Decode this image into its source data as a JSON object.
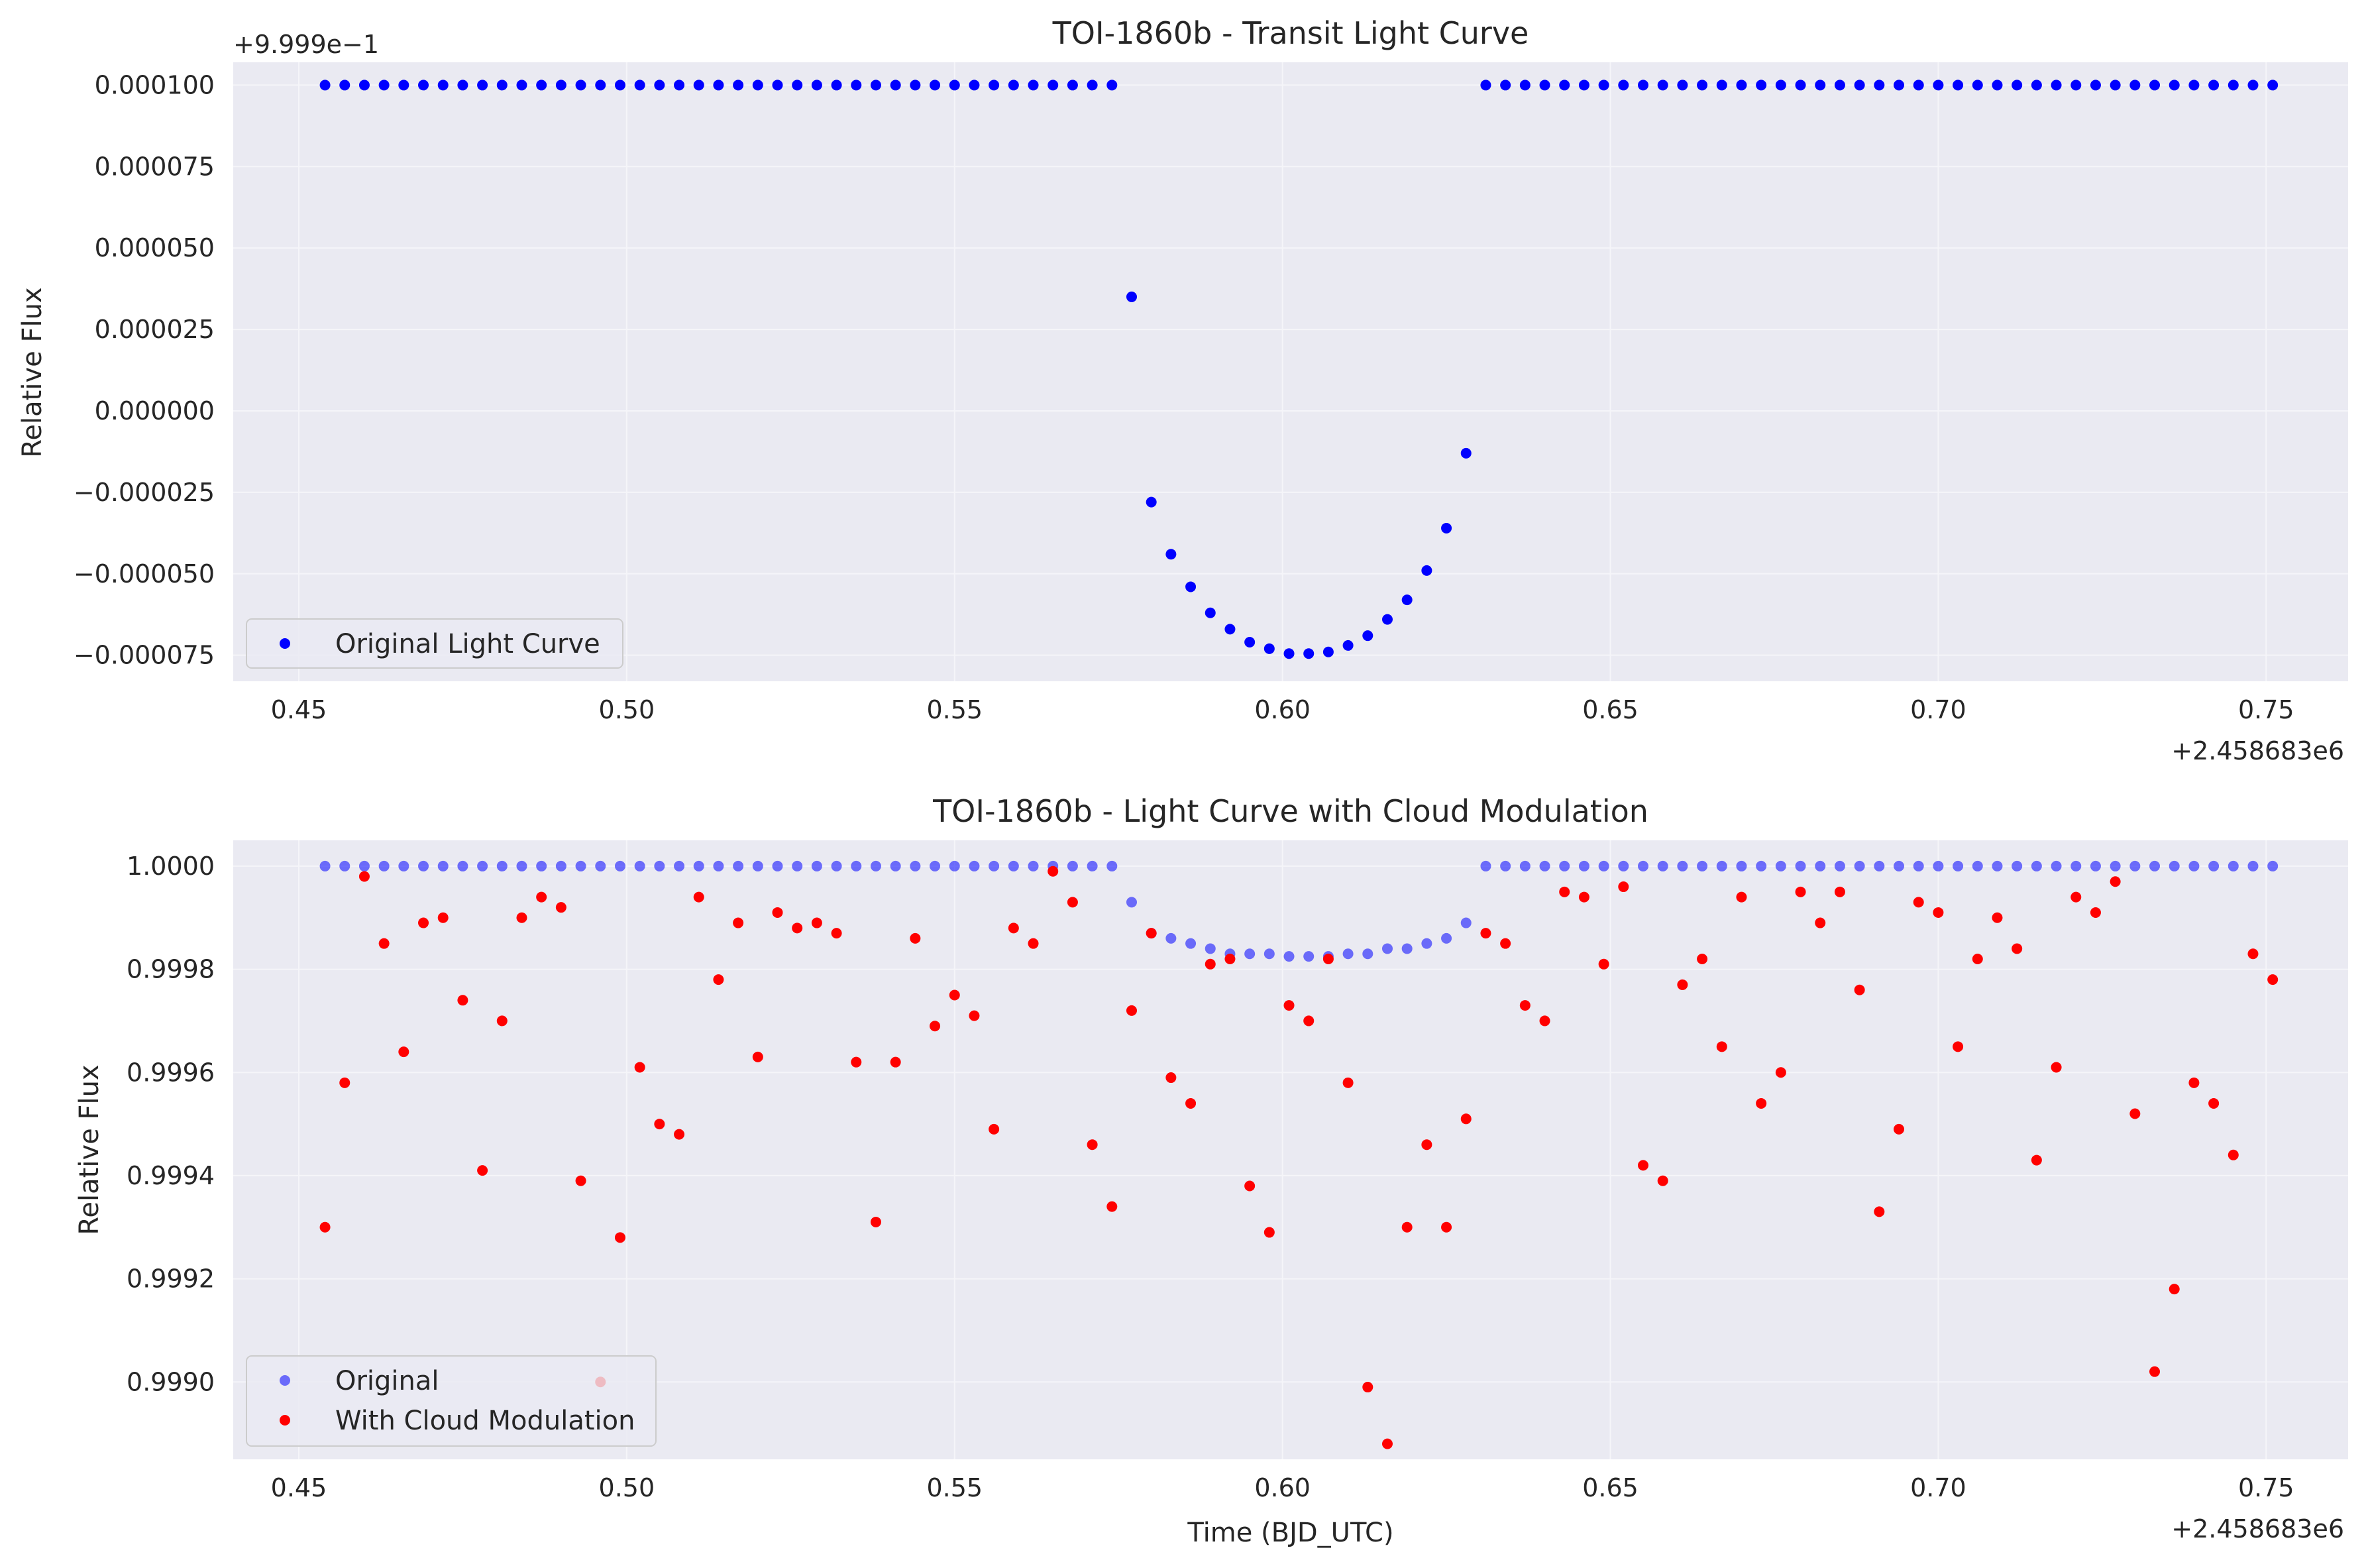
{
  "colors": {
    "axes_bg": "#eaeaf2",
    "grid": "#f5f5f9",
    "legend_frame": "#cccccc",
    "original": "#0000ff",
    "cloud": "#ff0000"
  },
  "chart_data": [
    {
      "type": "scatter",
      "title": "TOI-1860b - Transit Light Curve",
      "xlabel": "",
      "ylabel": "Relative Flux",
      "xlim": [
        0.44,
        0.7625
      ],
      "ylim": [
        -8.3e-05,
        0.000107
      ],
      "x_offset_label": "+2.458683e6",
      "y_offset_label": "+9.999e−1",
      "xticks": [
        0.45,
        0.5,
        0.55,
        0.6,
        0.65,
        0.7,
        0.75
      ],
      "xtick_labels": [
        "0.45",
        "0.50",
        "0.55",
        "0.60",
        "0.65",
        "0.70",
        "0.75"
      ],
      "yticks": [
        -7.5e-05,
        -5e-05,
        -2.5e-05,
        0,
        2.5e-05,
        5e-05,
        7.5e-05,
        0.0001
      ],
      "ytick_labels": [
        "−0.000075",
        "−0.000050",
        "−0.000025",
        "0.000000",
        "0.000025",
        "0.000050",
        "0.000075",
        "0.000100"
      ],
      "grid": true,
      "legend_position": "lower-left",
      "series": [
        {
          "name": "Original Light Curve",
          "color": "#0000ff",
          "opacity": 1,
          "x": [
            0.454,
            0.457,
            0.46,
            0.463,
            0.466,
            0.469,
            0.472,
            0.475,
            0.478,
            0.481,
            0.484,
            0.487,
            0.49,
            0.493,
            0.496,
            0.499,
            0.502,
            0.505,
            0.508,
            0.511,
            0.514,
            0.517,
            0.52,
            0.523,
            0.526,
            0.529,
            0.532,
            0.535,
            0.538,
            0.541,
            0.544,
            0.547,
            0.55,
            0.553,
            0.556,
            0.559,
            0.562,
            0.565,
            0.568,
            0.571,
            0.574,
            0.577,
            0.58,
            0.583,
            0.586,
            0.589,
            0.592,
            0.595,
            0.598,
            0.601,
            0.604,
            0.607,
            0.61,
            0.613,
            0.616,
            0.619,
            0.622,
            0.625,
            0.628,
            0.631,
            0.634,
            0.637,
            0.64,
            0.643,
            0.646,
            0.649,
            0.652,
            0.655,
            0.658,
            0.661,
            0.664,
            0.667,
            0.67,
            0.673,
            0.676,
            0.679,
            0.682,
            0.685,
            0.688,
            0.691,
            0.694,
            0.697,
            0.7,
            0.703,
            0.706,
            0.709,
            0.712,
            0.715,
            0.718,
            0.721,
            0.724,
            0.727,
            0.73,
            0.733,
            0.736,
            0.739,
            0.742,
            0.745,
            0.748,
            0.751
          ],
          "y": [
            0.0001,
            0.0001,
            0.0001,
            0.0001,
            0.0001,
            0.0001,
            0.0001,
            0.0001,
            0.0001,
            0.0001,
            0.0001,
            0.0001,
            0.0001,
            0.0001,
            0.0001,
            0.0001,
            0.0001,
            0.0001,
            0.0001,
            0.0001,
            0.0001,
            0.0001,
            0.0001,
            0.0001,
            0.0001,
            0.0001,
            0.0001,
            0.0001,
            0.0001,
            0.0001,
            0.0001,
            0.0001,
            0.0001,
            0.0001,
            0.0001,
            0.0001,
            0.0001,
            0.0001,
            0.0001,
            0.0001,
            0.0001,
            3.5e-05,
            -2.8e-05,
            -4.4e-05,
            -5.4e-05,
            -6.2e-05,
            -6.7e-05,
            -7.1e-05,
            -7.3e-05,
            -7.45e-05,
            -7.45e-05,
            -7.4e-05,
            -7.2e-05,
            -6.9e-05,
            -6.4e-05,
            -5.8e-05,
            -4.9e-05,
            -3.6e-05,
            -1.3e-05,
            0.0001,
            0.0001,
            0.0001,
            0.0001,
            0.0001,
            0.0001,
            0.0001,
            0.0001,
            0.0001,
            0.0001,
            0.0001,
            0.0001,
            0.0001,
            0.0001,
            0.0001,
            0.0001,
            0.0001,
            0.0001,
            0.0001,
            0.0001,
            0.0001,
            0.0001,
            0.0001,
            0.0001,
            0.0001,
            0.0001,
            0.0001,
            0.0001,
            0.0001,
            0.0001,
            0.0001,
            0.0001,
            0.0001,
            0.0001,
            0.0001,
            0.0001,
            0.0001,
            0.0001,
            0.0001,
            0.0001,
            0.0001
          ]
        }
      ]
    },
    {
      "type": "scatter",
      "title": "TOI-1860b - Light Curve with Cloud Modulation",
      "xlabel": "Time (BJD_UTC)",
      "ylabel": "Relative Flux",
      "xlim": [
        0.44,
        0.7625
      ],
      "ylim": [
        0.99885,
        1.00005
      ],
      "x_offset_label": "+2.458683e6",
      "xticks": [
        0.45,
        0.5,
        0.55,
        0.6,
        0.65,
        0.7,
        0.75
      ],
      "xtick_labels": [
        "0.45",
        "0.50",
        "0.55",
        "0.60",
        "0.65",
        "0.70",
        "0.75"
      ],
      "yticks": [
        0.999,
        0.9992,
        0.9994,
        0.9996,
        0.9998,
        1.0
      ],
      "ytick_labels": [
        "0.9990",
        "0.9992",
        "0.9994",
        "0.9996",
        "0.9998",
        "1.0000"
      ],
      "grid": true,
      "legend_position": "lower-left",
      "series": [
        {
          "name": "Original",
          "color": "#0000ff",
          "opacity": 0.55,
          "x": [
            0.454,
            0.457,
            0.46,
            0.463,
            0.466,
            0.469,
            0.472,
            0.475,
            0.478,
            0.481,
            0.484,
            0.487,
            0.49,
            0.493,
            0.496,
            0.499,
            0.502,
            0.505,
            0.508,
            0.511,
            0.514,
            0.517,
            0.52,
            0.523,
            0.526,
            0.529,
            0.532,
            0.535,
            0.538,
            0.541,
            0.544,
            0.547,
            0.55,
            0.553,
            0.556,
            0.559,
            0.562,
            0.565,
            0.568,
            0.571,
            0.574,
            0.577,
            0.58,
            0.583,
            0.586,
            0.589,
            0.592,
            0.595,
            0.598,
            0.601,
            0.604,
            0.607,
            0.61,
            0.613,
            0.616,
            0.619,
            0.622,
            0.625,
            0.628,
            0.631,
            0.634,
            0.637,
            0.64,
            0.643,
            0.646,
            0.649,
            0.652,
            0.655,
            0.658,
            0.661,
            0.664,
            0.667,
            0.67,
            0.673,
            0.676,
            0.679,
            0.682,
            0.685,
            0.688,
            0.691,
            0.694,
            0.697,
            0.7,
            0.703,
            0.706,
            0.709,
            0.712,
            0.715,
            0.718,
            0.721,
            0.724,
            0.727,
            0.73,
            0.733,
            0.736,
            0.739,
            0.742,
            0.745,
            0.748,
            0.751
          ],
          "y": [
            1.0,
            1.0,
            1.0,
            1.0,
            1.0,
            1.0,
            1.0,
            1.0,
            1.0,
            1.0,
            1.0,
            1.0,
            1.0,
            1.0,
            1.0,
            1.0,
            1.0,
            1.0,
            1.0,
            1.0,
            1.0,
            1.0,
            1.0,
            1.0,
            1.0,
            1.0,
            1.0,
            1.0,
            1.0,
            1.0,
            1.0,
            1.0,
            1.0,
            1.0,
            1.0,
            1.0,
            1.0,
            1.0,
            1.0,
            1.0,
            1.0,
            0.99993,
            0.99987,
            0.99986,
            0.99985,
            0.99984,
            0.99983,
            0.99983,
            0.99983,
            0.999825,
            0.999825,
            0.999825,
            0.99983,
            0.99983,
            0.99984,
            0.99984,
            0.99985,
            0.99986,
            0.99989,
            1.0,
            1.0,
            1.0,
            1.0,
            1.0,
            1.0,
            1.0,
            1.0,
            1.0,
            1.0,
            1.0,
            1.0,
            1.0,
            1.0,
            1.0,
            1.0,
            1.0,
            1.0,
            1.0,
            1.0,
            1.0,
            1.0,
            1.0,
            1.0,
            1.0,
            1.0,
            1.0,
            1.0,
            1.0,
            1.0,
            1.0,
            1.0,
            1.0,
            1.0,
            1.0,
            1.0,
            1.0,
            1.0,
            1.0,
            1.0,
            1.0
          ]
        },
        {
          "name": "With Cloud Modulation",
          "color": "#ff0000",
          "opacity": 1,
          "x": [
            0.454,
            0.457,
            0.46,
            0.463,
            0.466,
            0.469,
            0.472,
            0.475,
            0.478,
            0.481,
            0.484,
            0.487,
            0.49,
            0.493,
            0.496,
            0.499,
            0.502,
            0.505,
            0.508,
            0.511,
            0.514,
            0.517,
            0.52,
            0.523,
            0.526,
            0.529,
            0.532,
            0.535,
            0.538,
            0.541,
            0.544,
            0.547,
            0.55,
            0.553,
            0.556,
            0.559,
            0.562,
            0.565,
            0.568,
            0.571,
            0.574,
            0.577,
            0.58,
            0.583,
            0.586,
            0.589,
            0.592,
            0.595,
            0.598,
            0.601,
            0.604,
            0.607,
            0.61,
            0.613,
            0.616,
            0.619,
            0.622,
            0.625,
            0.628,
            0.631,
            0.634,
            0.637,
            0.64,
            0.643,
            0.646,
            0.649,
            0.652,
            0.655,
            0.658,
            0.661,
            0.664,
            0.667,
            0.67,
            0.673,
            0.676,
            0.679,
            0.682,
            0.685,
            0.688,
            0.691,
            0.694,
            0.697,
            0.7,
            0.703,
            0.706,
            0.709,
            0.712,
            0.715,
            0.718,
            0.721,
            0.724,
            0.727,
            0.73,
            0.733,
            0.736,
            0.739,
            0.742,
            0.745,
            0.748,
            0.751
          ],
          "y": [
            0.9993,
            0.99958,
            0.99998,
            0.99985,
            0.99964,
            0.99989,
            0.9999,
            0.99974,
            0.99941,
            0.9997,
            0.9999,
            0.99994,
            0.99992,
            0.99939,
            0.999,
            0.99928,
            0.99961,
            0.9995,
            0.99948,
            0.99994,
            0.99978,
            0.99989,
            0.99963,
            0.99991,
            0.99988,
            0.99989,
            0.99987,
            0.99962,
            0.99931,
            0.99962,
            0.99986,
            0.99969,
            0.99975,
            0.99971,
            0.99949,
            0.99988,
            0.99985,
            0.99999,
            0.99993,
            0.99946,
            0.99934,
            0.99972,
            0.99987,
            0.99959,
            0.99954,
            0.99981,
            0.99982,
            0.99938,
            0.99929,
            0.99973,
            0.9997,
            0.99982,
            0.99958,
            0.99899,
            0.99888,
            0.9993,
            0.99946,
            0.9993,
            0.99951,
            0.99987,
            0.99985,
            0.99973,
            0.9997,
            0.99995,
            0.99994,
            0.99981,
            0.99996,
            0.99942,
            0.99939,
            0.99977,
            0.99982,
            0.99965,
            0.99994,
            0.99954,
            0.9996,
            0.99995,
            0.99989,
            0.99995,
            0.99976,
            0.99933,
            0.99949,
            0.99993,
            0.99991,
            0.99965,
            0.99982,
            0.9999,
            0.99984,
            0.99943,
            0.99961,
            0.99994,
            0.99991,
            0.99997,
            0.99952,
            0.99902,
            0.99918,
            0.99958,
            0.99954,
            0.99944,
            0.99983,
            0.99978
          ]
        }
      ]
    }
  ]
}
